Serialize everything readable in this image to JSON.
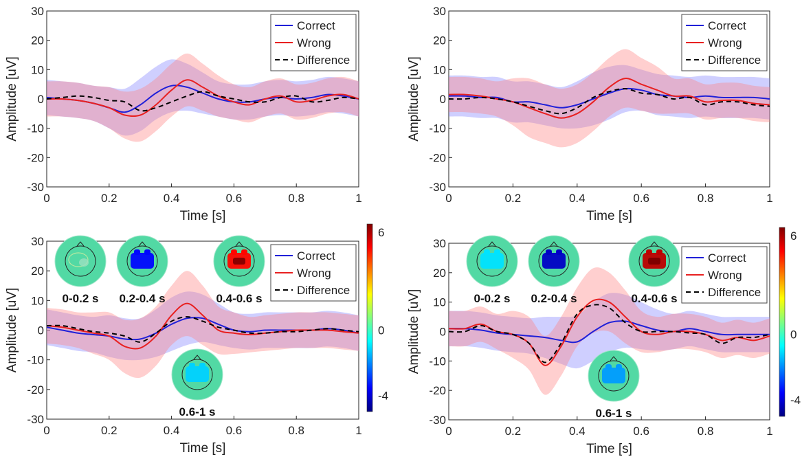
{
  "colors": {
    "correct": "#2020d8",
    "wrong": "#e82020",
    "difference": "#000000",
    "band_correct": "#8080ff",
    "band_wrong": "#ff8080",
    "head_fill": "#52d9a4"
  },
  "chart_data": [
    {
      "type": "line",
      "xlabel": "Time [s]",
      "ylabel": "Amplitude [uV]",
      "xlim": [
        0,
        1
      ],
      "ylim": [
        -30,
        30
      ],
      "xticks": [
        "0",
        "0.2",
        "0.4",
        "0.6",
        "0.8",
        "1"
      ],
      "yticks": [
        "30",
        "20",
        "10",
        "0",
        "-10",
        "-20",
        "-30"
      ],
      "legend": [
        "Correct",
        "Wrong",
        "Difference"
      ],
      "legend_position": "top-right",
      "x": [
        0,
        0.05,
        0.1,
        0.15,
        0.2,
        0.25,
        0.3,
        0.35,
        0.4,
        0.45,
        0.5,
        0.55,
        0.6,
        0.65,
        0.7,
        0.75,
        0.8,
        0.85,
        0.9,
        0.95,
        1
      ],
      "series": [
        {
          "name": "Correct",
          "values": [
            0.5,
            0,
            -0.5,
            -1.5,
            -3,
            -4.5,
            -2,
            2,
            4.5,
            4,
            2,
            0,
            -1,
            -1,
            0,
            0.5,
            0,
            0.5,
            1.5,
            1,
            0
          ],
          "band": [
            6,
            6,
            6,
            6,
            7,
            8,
            9,
            9,
            9,
            8,
            7,
            6,
            6,
            6,
            6,
            6,
            6,
            6,
            6,
            6,
            6
          ]
        },
        {
          "name": "Wrong",
          "values": [
            0,
            0,
            -0.5,
            -1.5,
            -3,
            -5.5,
            -5.5,
            -2,
            3,
            6.5,
            4,
            1,
            -1,
            -2,
            0,
            1,
            -1,
            -0.5,
            1,
            1.5,
            0
          ],
          "band": [
            6,
            6,
            6,
            6,
            7,
            8,
            9,
            9,
            9,
            9,
            8,
            7,
            6,
            6,
            6,
            6,
            6,
            6,
            6,
            6,
            6
          ]
        },
        {
          "name": "Difference",
          "values": [
            0,
            0.5,
            1,
            0.5,
            -0.5,
            -1,
            -4,
            -3,
            -1,
            1,
            2.5,
            1,
            0,
            -1,
            -1,
            0.5,
            1,
            -1,
            -0.5,
            0.5,
            0
          ]
        }
      ]
    },
    {
      "type": "line",
      "xlabel": "Time [s]",
      "ylabel": "Amplitude [uV]",
      "xlim": [
        0,
        1
      ],
      "ylim": [
        -30,
        30
      ],
      "xticks": [
        "0",
        "0.2",
        "0.4",
        "0.6",
        "0.8",
        "1"
      ],
      "yticks": [
        "30",
        "20",
        "10",
        "0",
        "-10",
        "-20",
        "-30"
      ],
      "legend": [
        "Correct",
        "Wrong",
        "Difference"
      ],
      "legend_position": "top-right",
      "x": [
        0,
        0.05,
        0.1,
        0.15,
        0.2,
        0.25,
        0.3,
        0.35,
        0.4,
        0.45,
        0.5,
        0.55,
        0.6,
        0.65,
        0.7,
        0.75,
        0.8,
        0.85,
        0.9,
        0.95,
        1
      ],
      "series": [
        {
          "name": "Correct",
          "values": [
            1,
            1,
            0.5,
            0.5,
            -1,
            -1,
            -2,
            -3,
            -2,
            0,
            2,
            3.5,
            3,
            1.5,
            1,
            0.5,
            1,
            0.5,
            0.5,
            0.5,
            0
          ],
          "band": [
            7,
            7,
            7,
            7,
            7,
            7,
            7,
            7,
            8,
            9,
            9,
            8,
            7,
            7,
            7,
            7,
            7,
            7,
            7,
            7,
            7
          ]
        },
        {
          "name": "Wrong",
          "values": [
            1.5,
            1.5,
            1,
            0,
            -1,
            -3,
            -5,
            -6.5,
            -5,
            -1,
            4,
            7,
            5,
            3,
            1,
            1,
            -1,
            -0.5,
            -0.5,
            -1.5,
            -2
          ],
          "band": [
            6,
            6,
            6,
            6,
            8,
            10,
            10,
            10,
            10,
            10,
            10,
            10,
            9,
            8,
            6,
            6,
            6,
            6,
            6,
            6,
            6
          ]
        },
        {
          "name": "Difference",
          "values": [
            0,
            0,
            0.5,
            0,
            -1,
            -2.5,
            -4,
            -5,
            -3,
            0.5,
            2.5,
            3.5,
            2,
            1.5,
            0,
            0.5,
            -2,
            -1,
            -1,
            -2,
            -2.5
          ]
        }
      ]
    },
    {
      "type": "line",
      "xlabel": "Time [s]",
      "ylabel": "Amplitude [uV]",
      "xlim": [
        0,
        1
      ],
      "ylim": [
        -30,
        30
      ],
      "xticks": [
        "0",
        "0.2",
        "0.4",
        "0.6",
        "0.8",
        "1"
      ],
      "yticks": [
        "30",
        "20",
        "10",
        "0",
        "-10",
        "-20",
        "-30"
      ],
      "legend": [
        "Correct",
        "Wrong",
        "Difference"
      ],
      "legend_position": "top-right",
      "colorbar": {
        "ticks": [
          "6",
          "0",
          "-4"
        ],
        "range": [
          -5,
          6.5
        ]
      },
      "topomaps": [
        {
          "label": "0-0.2 s",
          "time": 0.1,
          "level": 0.1
        },
        {
          "label": "0.2-0.4 s",
          "time": 0.3,
          "level": -3.5
        },
        {
          "label": "0.4-0.6 s",
          "time": 0.5,
          "level": 5
        },
        {
          "label": "0.6-1 s",
          "time": 0.8,
          "level": -1.2
        }
      ],
      "x": [
        0,
        0.05,
        0.1,
        0.15,
        0.2,
        0.25,
        0.3,
        0.35,
        0.4,
        0.45,
        0.5,
        0.55,
        0.6,
        0.65,
        0.7,
        0.75,
        0.8,
        0.85,
        0.9,
        0.95,
        1
      ],
      "series": [
        {
          "name": "Correct",
          "values": [
            1,
            0,
            -1,
            -1.5,
            -2,
            -3,
            -3,
            -1,
            2,
            4,
            4,
            2,
            0,
            -0.5,
            0,
            0,
            0,
            0,
            0.5,
            0,
            -1
          ],
          "band": [
            6,
            6,
            6,
            6,
            7,
            7,
            7,
            8,
            9,
            9,
            8,
            7,
            6,
            6,
            6,
            6,
            6,
            6,
            6,
            6,
            6
          ]
        },
        {
          "name": "Wrong",
          "values": [
            1.5,
            1,
            0,
            -1,
            -2,
            -5.5,
            -6,
            -2,
            5,
            9,
            5,
            0,
            -1,
            -1.5,
            -1,
            -0.5,
            0,
            0,
            0,
            -0.5,
            -1
          ],
          "band": [
            6,
            6,
            6,
            7,
            8,
            9,
            10,
            10,
            10,
            11,
            10,
            8,
            7,
            6,
            6,
            6,
            6,
            6,
            6,
            6,
            6
          ]
        },
        {
          "name": "Difference",
          "values": [
            1.5,
            1.5,
            0.5,
            -0.5,
            -1,
            -2,
            -4,
            -1,
            3,
            4.5,
            3,
            1,
            0,
            -1,
            -1,
            -0.5,
            -0.5,
            0,
            0.5,
            0,
            -0.5
          ]
        }
      ]
    },
    {
      "type": "line",
      "xlabel": "Time [s]",
      "ylabel": "Amplitude [uV]",
      "xlim": [
        0,
        1
      ],
      "ylim": [
        -30,
        30
      ],
      "xticks": [
        "0",
        "0.2",
        "0.4",
        "0.6",
        "0.8",
        "1"
      ],
      "yticks": [
        "30",
        "20",
        "10",
        "0",
        "-10",
        "-20",
        "-30"
      ],
      "legend": [
        "Correct",
        "Wrong",
        "Difference"
      ],
      "legend_position": "top-right",
      "colorbar": {
        "ticks": [
          "6",
          "0",
          "-4"
        ],
        "range": [
          -5,
          6.5
        ]
      },
      "topomaps": [
        {
          "label": "0-0.2 s",
          "time": 0.1,
          "level": -1.0
        },
        {
          "label": "0.2-0.4 s",
          "time": 0.3,
          "level": -4.2
        },
        {
          "label": "0.4-0.6 s",
          "time": 0.5,
          "level": 5.8
        },
        {
          "label": "0.6-1 s",
          "time": 0.8,
          "level": -1.8
        }
      ],
      "x": [
        0,
        0.05,
        0.1,
        0.15,
        0.2,
        0.25,
        0.3,
        0.35,
        0.4,
        0.45,
        0.5,
        0.55,
        0.6,
        0.65,
        0.7,
        0.75,
        0.8,
        0.85,
        0.9,
        0.95,
        1
      ],
      "series": [
        {
          "name": "Correct",
          "values": [
            1,
            1,
            0.5,
            -0.5,
            -1,
            -1.5,
            -2,
            -3,
            -3.5,
            0,
            3,
            3.5,
            2,
            0.5,
            0,
            1,
            0,
            -1,
            -1,
            -1,
            -1
          ],
          "band": [
            6,
            6,
            6,
            6,
            6,
            6,
            7,
            8,
            9,
            10,
            10,
            9,
            8,
            7,
            6,
            6,
            6,
            6,
            6,
            6,
            6
          ]
        },
        {
          "name": "Wrong",
          "values": [
            1,
            1,
            2.5,
            0,
            -1,
            -4,
            -11.5,
            -5,
            5,
            10.5,
            10,
            5,
            0,
            -1,
            0,
            0,
            -1,
            -3,
            -2,
            -3,
            -1.5
          ],
          "band": [
            6,
            6,
            6,
            6,
            8,
            9,
            10,
            10,
            10,
            11,
            10,
            9,
            7,
            6,
            6,
            6,
            6,
            6,
            6,
            6,
            6
          ]
        },
        {
          "name": "Difference",
          "values": [
            0,
            0,
            2,
            0,
            -1,
            -4,
            -10.5,
            -4,
            6,
            9,
            8,
            3,
            0,
            0,
            0,
            -0.5,
            -1,
            -4,
            -2,
            -2,
            -1
          ]
        }
      ]
    }
  ]
}
